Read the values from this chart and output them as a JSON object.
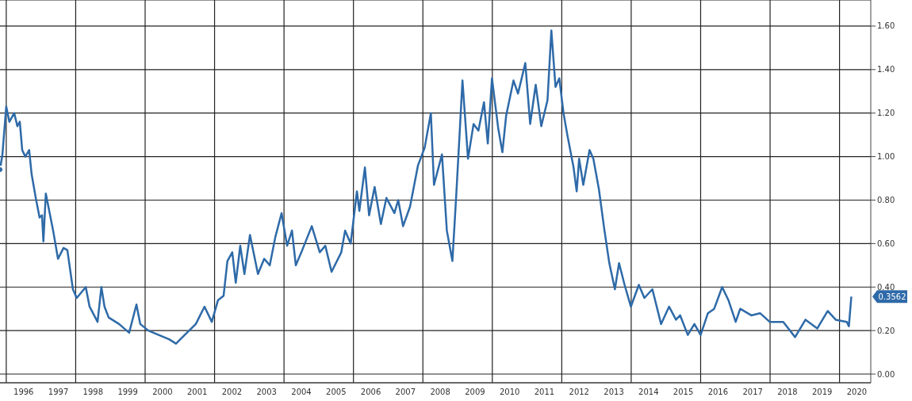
{
  "chart_data": {
    "type": "line",
    "x": [
      1995.82,
      1995.89,
      1996.0,
      1996.09,
      1996.23,
      1996.32,
      1996.39,
      1996.46,
      1996.55,
      1996.66,
      1996.73,
      1996.85,
      1996.96,
      1997.03,
      1997.07,
      1997.14,
      1997.35,
      1997.49,
      1997.65,
      1997.76,
      1997.92,
      1998.03,
      1998.29,
      1998.4,
      1998.63,
      1998.74,
      1998.83,
      1998.95,
      1999.25,
      1999.54,
      1999.75,
      1999.86,
      2000.09,
      2000.39,
      2000.69,
      2000.89,
      2001.14,
      2001.46,
      2001.71,
      2001.92,
      2002.1,
      2002.26,
      2002.37,
      2002.51,
      2002.61,
      2002.74,
      2002.86,
      2003.02,
      2003.25,
      2003.43,
      2003.59,
      2003.75,
      2003.93,
      2004.09,
      2004.23,
      2004.34,
      2004.5,
      2004.8,
      2005.03,
      2005.19,
      2005.37,
      2005.65,
      2005.76,
      2005.92,
      2006.1,
      2006.17,
      2006.33,
      2006.45,
      2006.61,
      2006.79,
      2006.95,
      2007.18,
      2007.29,
      2007.43,
      2007.63,
      2007.86,
      2008.05,
      2008.23,
      2008.32,
      2008.55,
      2008.69,
      2008.85,
      2008.96,
      2009.07,
      2009.14,
      2009.3,
      2009.46,
      2009.6,
      2009.76,
      2009.87,
      2009.99,
      2010.17,
      2010.29,
      2010.4,
      2010.61,
      2010.74,
      2010.95,
      2011.09,
      2011.25,
      2011.41,
      2011.59,
      2011.7,
      2011.82,
      2011.93,
      2012.05,
      2012.16,
      2012.34,
      2012.43,
      2012.5,
      2012.62,
      2012.8,
      2012.91,
      2013.07,
      2013.23,
      2013.37,
      2013.53,
      2013.65,
      2013.81,
      2013.99,
      2014.22,
      2014.38,
      2014.61,
      2014.86,
      2015.09,
      2015.29,
      2015.41,
      2015.63,
      2015.82,
      2016.0,
      2016.21,
      2016.39,
      2016.62,
      2016.8,
      2017.01,
      2017.14,
      2017.46,
      2017.71,
      2017.99,
      2018.38,
      2018.72,
      2019.02,
      2019.36,
      2019.66,
      2019.89,
      2020.21,
      2020.27,
      2020.34
    ],
    "series": [
      {
        "color": "#2e6aa8",
        "values": [
          0.94,
          1.01,
          1.23,
          1.16,
          1.2,
          1.14,
          1.16,
          1.03,
          1.0,
          1.03,
          0.92,
          0.81,
          0.72,
          0.73,
          0.61,
          0.83,
          0.66,
          0.53,
          0.58,
          0.57,
          0.39,
          0.35,
          0.4,
          0.31,
          0.24,
          0.4,
          0.31,
          0.26,
          0.23,
          0.19,
          0.32,
          0.23,
          0.2,
          0.18,
          0.16,
          0.14,
          0.18,
          0.23,
          0.31,
          0.24,
          0.34,
          0.36,
          0.52,
          0.56,
          0.42,
          0.59,
          0.46,
          0.64,
          0.46,
          0.53,
          0.5,
          0.63,
          0.74,
          0.59,
          0.66,
          0.5,
          0.56,
          0.68,
          0.56,
          0.59,
          0.47,
          0.56,
          0.66,
          0.6,
          0.84,
          0.75,
          0.95,
          0.73,
          0.86,
          0.69,
          0.81,
          0.74,
          0.8,
          0.68,
          0.77,
          0.96,
          1.04,
          1.2,
          0.87,
          1.01,
          0.66,
          0.52,
          0.82,
          1.14,
          1.35,
          0.99,
          1.15,
          1.12,
          1.25,
          1.06,
          1.36,
          1.13,
          1.02,
          1.19,
          1.35,
          1.29,
          1.43,
          1.15,
          1.33,
          1.14,
          1.26,
          1.58,
          1.32,
          1.36,
          1.2,
          1.1,
          0.95,
          0.84,
          0.99,
          0.87,
          1.03,
          0.99,
          0.85,
          0.66,
          0.51,
          0.39,
          0.51,
          0.41,
          0.31,
          0.41,
          0.35,
          0.39,
          0.23,
          0.31,
          0.25,
          0.27,
          0.18,
          0.23,
          0.18,
          0.28,
          0.3,
          0.4,
          0.34,
          0.24,
          0.3,
          0.27,
          0.28,
          0.24,
          0.24,
          0.17,
          0.25,
          0.21,
          0.29,
          0.25,
          0.24,
          0.22,
          0.3562
        ]
      }
    ],
    "xlim": [
      1995.82,
      2020.9
    ],
    "xticks": [
      {
        "value": 1996,
        "label": null
      },
      {
        "value": 1996.5,
        "label": "1996"
      },
      {
        "value": 1997.5,
        "label": "1997"
      },
      {
        "value": 1998,
        "label": null
      },
      {
        "value": 1998.5,
        "label": "1998"
      },
      {
        "value": 1999.5,
        "label": "1999"
      },
      {
        "value": 2000,
        "label": null
      },
      {
        "value": 2000.5,
        "label": "2000"
      },
      {
        "value": 2001.5,
        "label": "2001"
      },
      {
        "value": 2002,
        "label": null
      },
      {
        "value": 2002.5,
        "label": "2002"
      },
      {
        "value": 2003.5,
        "label": "2003"
      },
      {
        "value": 2004,
        "label": null
      },
      {
        "value": 2004.5,
        "label": "2004"
      },
      {
        "value": 2005.5,
        "label": "2005"
      },
      {
        "value": 2006,
        "label": null
      },
      {
        "value": 2006.5,
        "label": "2006"
      },
      {
        "value": 2007.5,
        "label": "2007"
      },
      {
        "value": 2008,
        "label": null
      },
      {
        "value": 2008.5,
        "label": "2008"
      },
      {
        "value": 2009.5,
        "label": "2009"
      },
      {
        "value": 2010,
        "label": null
      },
      {
        "value": 2010.5,
        "label": "2010"
      },
      {
        "value": 2011.5,
        "label": "2011"
      },
      {
        "value": 2012,
        "label": null
      },
      {
        "value": 2012.5,
        "label": "2012"
      },
      {
        "value": 2013.5,
        "label": "2013"
      },
      {
        "value": 2014,
        "label": null
      },
      {
        "value": 2014.5,
        "label": "2014"
      },
      {
        "value": 2015.5,
        "label": "2015"
      },
      {
        "value": 2016,
        "label": null
      },
      {
        "value": 2016.5,
        "label": "2016"
      },
      {
        "value": 2017.5,
        "label": "2017"
      },
      {
        "value": 2018,
        "label": null
      },
      {
        "value": 2018.5,
        "label": "2018"
      },
      {
        "value": 2019.5,
        "label": "2019"
      },
      {
        "value": 2020,
        "label": null
      },
      {
        "value": 2020.5,
        "label": "2020"
      }
    ],
    "ylim": [
      -0.04,
      1.72
    ],
    "yticks": [
      {
        "value": 0,
        "label": "0.00"
      },
      {
        "value": 0.2,
        "label": "0.20"
      },
      {
        "value": 0.4,
        "label": "0.40"
      },
      {
        "value": 0.6,
        "label": "0.60"
      },
      {
        "value": 0.8,
        "label": "0.80"
      },
      {
        "value": 1,
        "label": "1.00"
      },
      {
        "value": 1.2,
        "label": "1.20"
      },
      {
        "value": 1.4,
        "label": "1.40"
      },
      {
        "value": 1.6,
        "label": "1.60"
      }
    ],
    "grid": true,
    "annotations": [
      "0.3562"
    ]
  }
}
